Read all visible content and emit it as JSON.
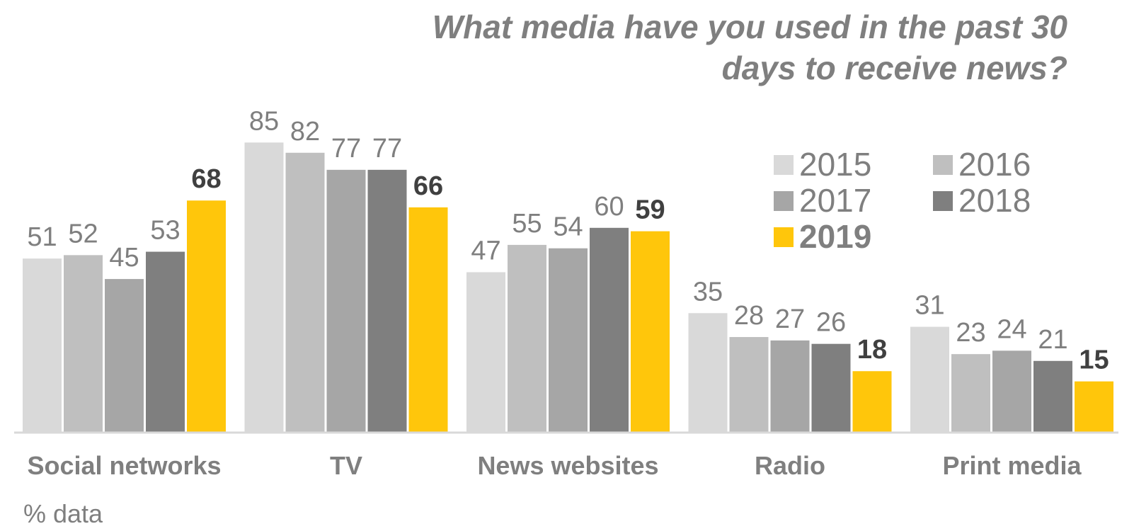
{
  "chart_data": {
    "type": "bar",
    "title": [
      "What media have you used in the past 30",
      "days to receive news?"
    ],
    "categories": [
      "Social networks",
      "TV",
      "News websites",
      "Radio",
      "Print media"
    ],
    "series": [
      {
        "name": "2015",
        "color": "#d9d9d9",
        "values": [
          51,
          85,
          47,
          35,
          31
        ]
      },
      {
        "name": "2016",
        "color": "#bfbfbf",
        "values": [
          52,
          82,
          55,
          28,
          23
        ]
      },
      {
        "name": "2017",
        "color": "#a6a6a6",
        "values": [
          45,
          77,
          54,
          27,
          24
        ]
      },
      {
        "name": "2018",
        "color": "#7f7f7f",
        "values": [
          53,
          77,
          60,
          26,
          21
        ]
      },
      {
        "name": "2019",
        "color": "#ffc60b",
        "values": [
          68,
          66,
          59,
          18,
          15
        ],
        "highlight": true
      }
    ],
    "ylim": [
      0,
      100
    ],
    "grid": false,
    "legend_position": "top-right",
    "footnote": "% data"
  }
}
